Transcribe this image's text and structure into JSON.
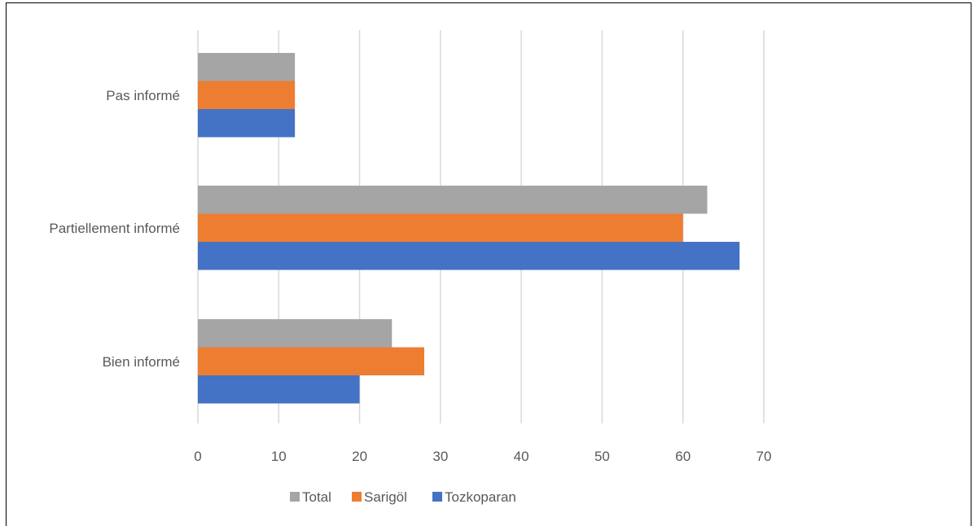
{
  "chart_data": {
    "type": "bar",
    "orientation": "horizontal",
    "categories": [
      "Pas informé",
      "Partiellement informé",
      "Bien informé"
    ],
    "series": [
      {
        "name": "Total",
        "color": "#a5a5a5",
        "values": [
          12,
          63,
          24
        ]
      },
      {
        "name": "Sarigöl",
        "color": "#ed7d31",
        "values": [
          12,
          60,
          28
        ]
      },
      {
        "name": "Tozkoparan",
        "color": "#4472c4",
        "values": [
          12,
          67,
          20
        ]
      }
    ],
    "xlim": [
      0,
      70
    ],
    "xticks": [
      "0",
      "10",
      "20",
      "30",
      "40",
      "50",
      "60",
      "70"
    ],
    "grid": true,
    "legend_position": "bottom"
  }
}
